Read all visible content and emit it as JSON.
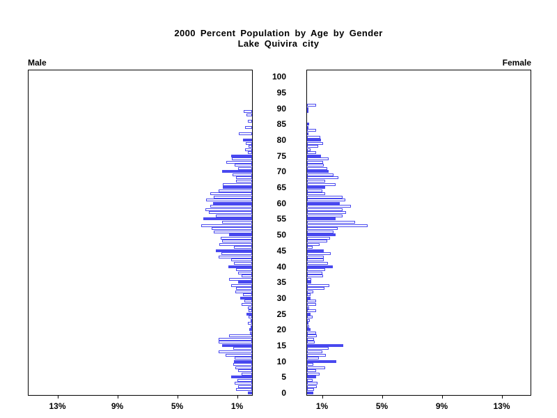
{
  "title": {
    "line1": "2000 Percent Population by Age by Gender",
    "line2": "Lake Quivira city"
  },
  "axis": {
    "left_side_label": "Male",
    "right_side_label": "Female",
    "male_pct_labels": [
      "13%",
      "9%",
      "5%",
      "1%"
    ],
    "female_pct_labels": [
      "1%",
      "5%",
      "9%",
      "13%"
    ]
  },
  "colors": {
    "bar_accent": "#4848ef",
    "open_bar_fill": "#ffffff",
    "frame": "#000000",
    "text": "#000000"
  },
  "chart_data": {
    "type": "bar",
    "subtype": "population-pyramid",
    "title": "2000 Percent Population by Age by Gender",
    "subtitle": "Lake Quivira city",
    "unit": "percent of population",
    "age_bin_years": 1,
    "age_axis_ticks": [
      0,
      5,
      10,
      15,
      20,
      25,
      30,
      35,
      40,
      45,
      50,
      55,
      60,
      65,
      70,
      75,
      80,
      85,
      90,
      95,
      100
    ],
    "percent_ticks": [
      1,
      5,
      9,
      13
    ],
    "xlim_percent": [
      0,
      15
    ],
    "filled_bar_rule": "bars for ages divisible by 5 are solid-filled; other ages are outlined",
    "series": [
      {
        "name": "Male",
        "side": "left",
        "values": [
          0.3,
          1.05,
          0.95,
          1.15,
          1.0,
          1.4,
          0.7,
          0.95,
          1.1,
          1.25,
          1.2,
          1.15,
          1.75,
          2.25,
          1.25,
          2.0,
          2.25,
          2.25,
          1.55,
          0.15,
          0.2,
          0.1,
          0.3,
          0.1,
          0.25,
          0.35,
          0.25,
          0.3,
          0.7,
          0.5,
          0.8,
          0.6,
          1.1,
          1.05,
          1.4,
          0.95,
          1.55,
          0.7,
          0.95,
          1.05,
          1.6,
          1.2,
          1.4,
          2.25,
          2.05,
          2.4,
          1.2,
          2.2,
          2.0,
          2.1,
          1.55,
          2.55,
          2.7,
          3.4,
          2.0,
          3.25,
          2.4,
          2.9,
          3.1,
          2.8,
          2.6,
          3.05,
          2.55,
          2.8,
          2.25,
          1.95,
          1.95,
          1.05,
          1.05,
          1.3,
          2.0,
          0.95,
          1.15,
          1.7,
          1.35,
          1.4,
          0.3,
          0.45,
          0.25,
          0.4,
          0.6,
          0,
          0.9,
          0,
          0.45,
          0,
          0.3,
          0,
          0.35,
          0.55,
          0,
          0,
          0,
          0,
          0,
          0,
          0,
          0,
          0,
          0,
          0
        ]
      },
      {
        "name": "Female",
        "side": "right",
        "values": [
          0.4,
          0.45,
          0.65,
          0.7,
          0.35,
          0.6,
          0.85,
          0.6,
          1.2,
          0.4,
          1.95,
          0.8,
          1.25,
          1.0,
          1.45,
          2.4,
          0.5,
          0.45,
          0.65,
          0.6,
          0.25,
          0.15,
          0.1,
          0.2,
          0.35,
          0.25,
          0.6,
          0.15,
          0.6,
          0.6,
          0.25,
          0.25,
          0.4,
          1.15,
          1.5,
          0.3,
          0.3,
          1.05,
          1.0,
          1.2,
          1.7,
          1.4,
          1.1,
          1.1,
          1.6,
          1.1,
          0.35,
          0.85,
          1.35,
          1.55,
          1.9,
          1.75,
          2.05,
          4.05,
          3.2,
          1.9,
          2.35,
          2.6,
          2.35,
          2.95,
          2.2,
          2.55,
          2.35,
          1.2,
          1.0,
          1.2,
          1.9,
          1.2,
          2.1,
          1.75,
          1.45,
          1.35,
          1.1,
          1.05,
          1.45,
          0.95,
          0.6,
          0.25,
          0.75,
          1.05,
          0.95,
          0.9,
          0.1,
          0.6,
          0.1,
          0.15,
          0,
          0,
          0,
          0.1,
          0.1,
          0.6,
          0,
          0,
          0,
          0,
          0,
          0,
          0,
          0,
          0
        ]
      }
    ]
  }
}
